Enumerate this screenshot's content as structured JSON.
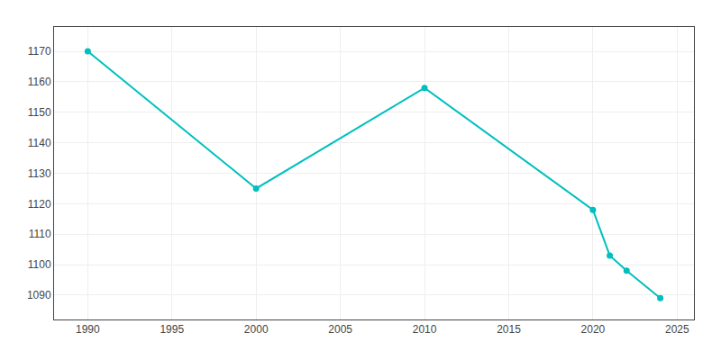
{
  "chart_data": {
    "type": "line",
    "x": [
      1990,
      2000,
      2010,
      2020,
      2021,
      2022,
      2024
    ],
    "values": [
      1170,
      1125,
      1158,
      1118,
      1103,
      1098,
      1089
    ],
    "color": "#00BFBF",
    "marker": "circle",
    "xlim": [
      1988,
      2026
    ],
    "ylim": [
      1082,
      1178
    ],
    "xticks": [
      1990,
      1995,
      2000,
      2005,
      2010,
      2015,
      2020,
      2025
    ],
    "yticks": [
      1090,
      1100,
      1110,
      1120,
      1130,
      1140,
      1150,
      1160,
      1170
    ],
    "grid": true
  }
}
